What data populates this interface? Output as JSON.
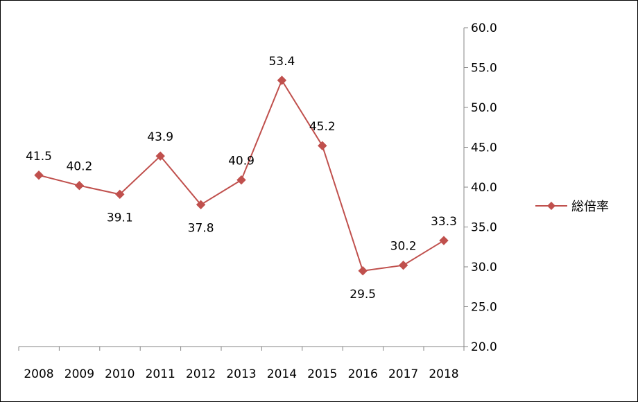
{
  "chart_data": {
    "type": "line",
    "title": "",
    "xlabel": "",
    "ylabel": "",
    "categories": [
      "2008",
      "2009",
      "2010",
      "2011",
      "2012",
      "2013",
      "2014",
      "2015",
      "2016",
      "2017",
      "2018"
    ],
    "series": [
      {
        "name": "総倍率",
        "values": [
          41.5,
          40.2,
          39.1,
          43.9,
          37.8,
          40.9,
          53.4,
          45.2,
          29.5,
          30.2,
          33.3
        ],
        "value_labels": [
          "41.5",
          "40.2",
          "39.1",
          "43.9",
          "37.8",
          "40.9",
          "53.4",
          "45.2",
          "29.5",
          "30.2",
          "33.3"
        ],
        "label_position": [
          "above",
          "above",
          "below",
          "above",
          "below",
          "above",
          "above",
          "above",
          "below",
          "above",
          "above"
        ],
        "color": "#C0504D",
        "marker": "diamond"
      }
    ],
    "ylim": [
      20,
      60
    ],
    "yticks": [
      "20.0",
      "25.0",
      "30.0",
      "35.0",
      "40.0",
      "45.0",
      "50.0",
      "55.0",
      "60.0"
    ],
    "y_axis_side": "right",
    "grid": false,
    "legend_position": "right"
  }
}
